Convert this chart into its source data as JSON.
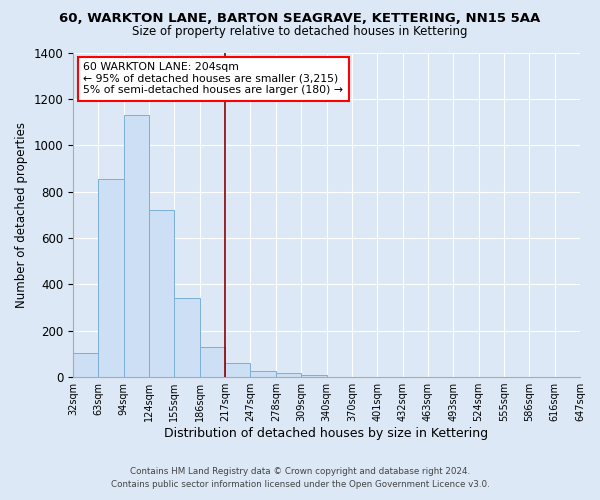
{
  "title_line1": "60, WARKTON LANE, BARTON SEAGRAVE, KETTERING, NN15 5AA",
  "title_line2": "Size of property relative to detached houses in Kettering",
  "xlabel": "Distribution of detached houses by size in Kettering",
  "ylabel": "Number of detached properties",
  "bin_labels": [
    "32sqm",
    "63sqm",
    "94sqm",
    "124sqm",
    "155sqm",
    "186sqm",
    "217sqm",
    "247sqm",
    "278sqm",
    "309sqm",
    "340sqm",
    "370sqm",
    "401sqm",
    "432sqm",
    "463sqm",
    "493sqm",
    "524sqm",
    "555sqm",
    "586sqm",
    "616sqm",
    "647sqm"
  ],
  "bar_values": [
    105,
    855,
    1130,
    720,
    340,
    130,
    60,
    28,
    18,
    10,
    0,
    0,
    0,
    0,
    0,
    0,
    0,
    0,
    0,
    0
  ],
  "bar_color": "#ccdff5",
  "bar_edge_color": "#7aafd4",
  "vline_color": "#8b0000",
  "annotation_text": "60 WARKTON LANE: 204sqm\n← 95% of detached houses are smaller (3,215)\n5% of semi-detached houses are larger (180) →",
  "annotation_box_color": "white",
  "annotation_box_edge_color": "red",
  "ylim": [
    0,
    1400
  ],
  "yticks": [
    0,
    200,
    400,
    600,
    800,
    1000,
    1200,
    1400
  ],
  "footer_line1": "Contains HM Land Registry data © Crown copyright and database right 2024.",
  "footer_line2": "Contains public sector information licensed under the Open Government Licence v3.0.",
  "bg_color": "#dce8f5",
  "plot_bg_color": "#dce8f5",
  "grid_color": "#ffffff"
}
